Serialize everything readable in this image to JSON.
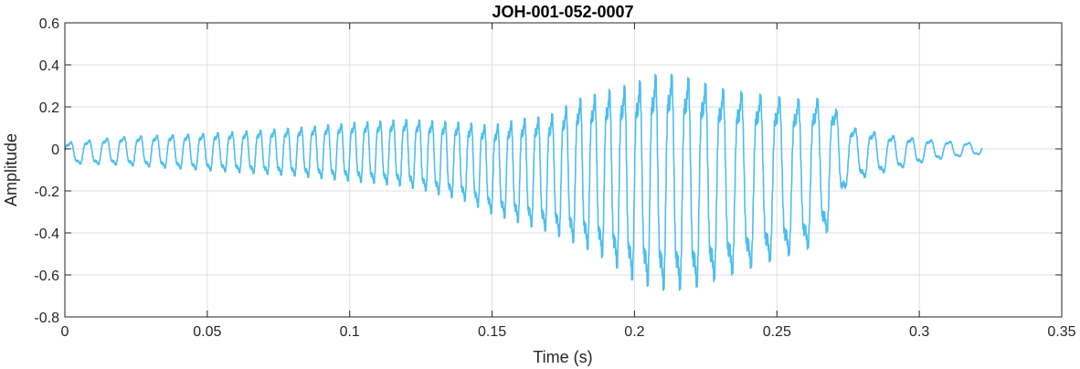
{
  "chart_data": {
    "type": "line",
    "title": "JOH-001-052-0007",
    "xlabel": "Time (s)",
    "ylabel": "Amplitude",
    "xlim": [
      0,
      0.35
    ],
    "ylim": [
      -0.8,
      0.6
    ],
    "x_ticks": [
      0,
      0.05,
      0.1,
      0.15,
      0.2,
      0.25,
      0.3,
      0.35
    ],
    "x_tick_labels": [
      "0",
      "0.05",
      "0.1",
      "0.15",
      "0.2",
      "0.25",
      "0.3",
      "0.35"
    ],
    "y_ticks": [
      -0.8,
      -0.6,
      -0.4,
      -0.2,
      0,
      0.2,
      0.4,
      0.6
    ],
    "y_tick_labels": [
      "-0.8",
      "-0.6",
      "-0.4",
      "-0.2",
      "0",
      "0.2",
      "0.4",
      "0.6"
    ],
    "grid": true,
    "series": [
      {
        "color": "#4DBEEE",
        "duration_s": 0.322,
        "envelope": [
          {
            "t": 0.0,
            "max": 0.04,
            "min": -0.08
          },
          {
            "t": 0.02,
            "max": 0.07,
            "min": -0.09
          },
          {
            "t": 0.05,
            "max": 0.09,
            "min": -0.12
          },
          {
            "t": 0.08,
            "max": 0.12,
            "min": -0.15
          },
          {
            "t": 0.1,
            "max": 0.15,
            "min": -0.18
          },
          {
            "t": 0.12,
            "max": 0.17,
            "min": -0.21
          },
          {
            "t": 0.14,
            "max": 0.16,
            "min": -0.28
          },
          {
            "t": 0.15,
            "max": 0.15,
            "min": -0.35
          },
          {
            "t": 0.16,
            "max": 0.19,
            "min": -0.4
          },
          {
            "t": 0.17,
            "max": 0.21,
            "min": -0.45
          },
          {
            "t": 0.18,
            "max": 0.3,
            "min": -0.52
          },
          {
            "t": 0.19,
            "max": 0.35,
            "min": -0.6
          },
          {
            "t": 0.2,
            "max": 0.4,
            "min": -0.72
          },
          {
            "t": 0.21,
            "max": 0.46,
            "min": -0.77
          },
          {
            "t": 0.22,
            "max": 0.43,
            "min": -0.76
          },
          {
            "t": 0.23,
            "max": 0.37,
            "min": -0.7
          },
          {
            "t": 0.245,
            "max": 0.33,
            "min": -0.62
          },
          {
            "t": 0.26,
            "max": 0.3,
            "min": -0.55
          },
          {
            "t": 0.268,
            "max": 0.3,
            "min": -0.45
          },
          {
            "t": 0.275,
            "max": 0.13,
            "min": -0.18
          },
          {
            "t": 0.29,
            "max": 0.08,
            "min": -0.12
          },
          {
            "t": 0.305,
            "max": 0.05,
            "min": -0.06
          },
          {
            "t": 0.322,
            "max": 0.03,
            "min": -0.03
          }
        ]
      }
    ]
  }
}
